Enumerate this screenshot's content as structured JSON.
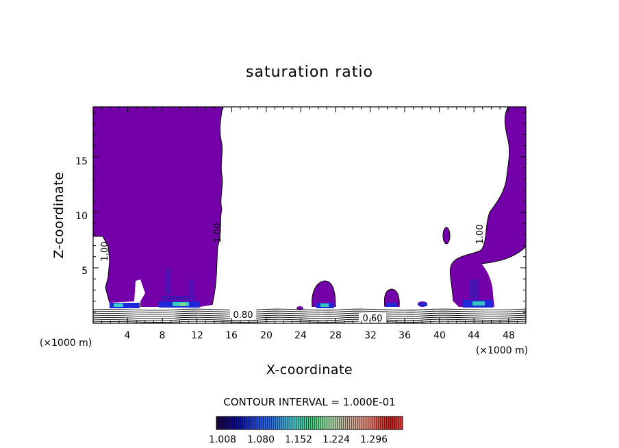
{
  "chart_data": {
    "type": "contour",
    "title": "saturation ratio",
    "xlabel": "X-coordinate",
    "ylabel": "Z-coordinate",
    "x_unit": "(×1000 m)",
    "x_ticks": [
      "4",
      "8",
      "12",
      "16",
      "20",
      "24",
      "28",
      "32",
      "36",
      "40",
      "44",
      "48"
    ],
    "y_ticks": [
      "5",
      "10",
      "15"
    ],
    "xlim": [
      0,
      50
    ],
    "ylim": [
      0,
      19.5
    ],
    "contour_interval_text": "CONTOUR INTERVAL = 1.000E-01",
    "contour_labels": [
      "1.00",
      "1.00",
      "1.00",
      "0.80",
      "0.60"
    ],
    "colorbar_ticks": [
      "1.008",
      "1.080",
      "1.152",
      "1.224",
      "1.296"
    ],
    "colorbar_range": [
      0.99,
      1.33
    ],
    "colors": {
      "supersaturated_fill": "#7300a8",
      "low_high": "#0000ff",
      "mid": "#00c8c8",
      "contour_line": "#000000"
    },
    "regions": [
      {
        "name": "west column",
        "x_range": [
          0,
          15
        ],
        "z_range": [
          1.3,
          19.5
        ],
        "value": ">1.00"
      },
      {
        "name": "east column",
        "x_range": [
          40.5,
          50
        ],
        "z_range": [
          1.3,
          19.5
        ],
        "value": ">1.00"
      },
      {
        "name": "cell near x=26",
        "x_range": [
          25,
          28
        ],
        "z_range": [
          1.3,
          3.5
        ],
        "value": ">1.00"
      },
      {
        "name": "cell near x=34",
        "x_range": [
          33,
          35
        ],
        "z_range": [
          1.3,
          3.2
        ],
        "value": ">1.00"
      }
    ]
  }
}
